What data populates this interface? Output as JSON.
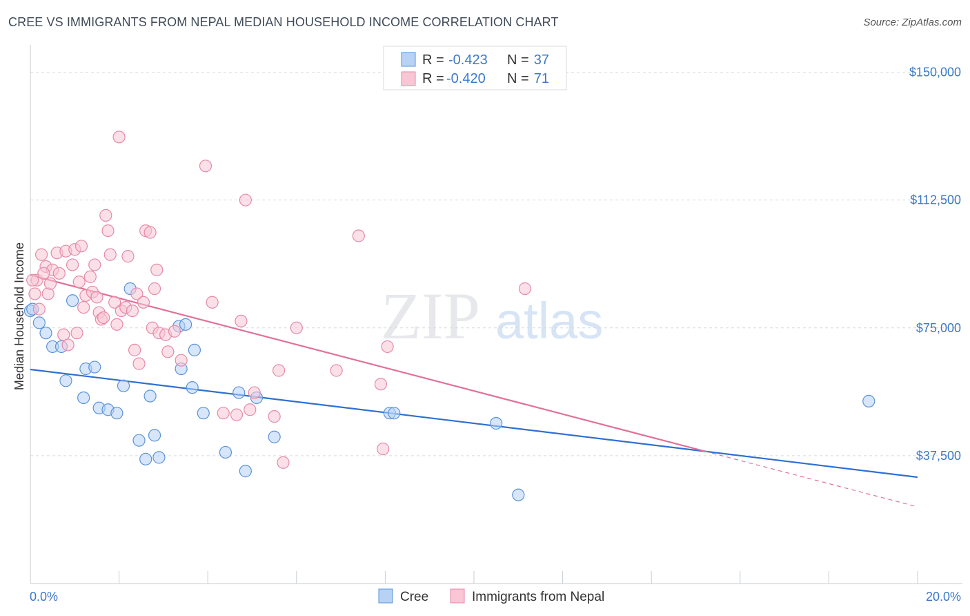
{
  "header": {
    "title": "CREE VS IMMIGRANTS FROM NEPAL MEDIAN HOUSEHOLD INCOME CORRELATION CHART",
    "source": "Source: ZipAtlas.com"
  },
  "watermark": {
    "zip": "ZIP",
    "atlas": "atlas"
  },
  "stats_legend": {
    "rows": [
      {
        "r_label": "R =",
        "r_value": "-0.423",
        "n_label": "N =",
        "n_value": "37"
      },
      {
        "r_label": "R =",
        "r_value": "-0.420",
        "n_label": "N =",
        "n_value": "71"
      }
    ]
  },
  "colors": {
    "cree_fill": "#b7d2f5",
    "cree_stroke": "#5b93d8",
    "cree_line": "#2f6fd0",
    "nepal_fill": "#f8c6d5",
    "nepal_stroke": "#e68aa8",
    "nepal_line": "#e0709a",
    "tick_text": "#3b78c9",
    "grid": "#d5d9de"
  },
  "chart_data": {
    "type": "scatter",
    "title": "CREE VS IMMIGRANTS FROM NEPAL MEDIAN HOUSEHOLD INCOME CORRELATION CHART",
    "xlabel": "",
    "ylabel": "Median Household Income",
    "xlim": [
      0,
      20
    ],
    "ylim": [
      0,
      157000
    ],
    "x_tick_labels": [
      "0.0%",
      "20.0%"
    ],
    "y_ticks": [
      37500,
      75000,
      112500,
      150000
    ],
    "y_tick_labels": [
      "$37,500",
      "$75,000",
      "$112,500",
      "$150,000"
    ],
    "grid": true,
    "legend_position": "bottom",
    "series": [
      {
        "name": "Cree",
        "r": -0.423,
        "n": 37,
        "trend": {
          "x": [
            0,
            20
          ],
          "y": [
            62800,
            31200
          ],
          "dashed_from_x": null
        },
        "points": [
          [
            0.0,
            80000
          ],
          [
            0.2,
            76500
          ],
          [
            0.35,
            73500
          ],
          [
            0.5,
            69500
          ],
          [
            0.7,
            69500
          ],
          [
            0.8,
            59500
          ],
          [
            0.95,
            83000
          ],
          [
            1.25,
            63000
          ],
          [
            1.55,
            51500
          ],
          [
            1.2,
            54500
          ],
          [
            1.45,
            63500
          ],
          [
            1.75,
            51000
          ],
          [
            1.95,
            50000
          ],
          [
            2.1,
            58000
          ],
          [
            2.25,
            86500
          ],
          [
            2.45,
            42000
          ],
          [
            2.6,
            36500
          ],
          [
            2.7,
            55000
          ],
          [
            2.8,
            43500
          ],
          [
            2.9,
            37000
          ],
          [
            3.35,
            75500
          ],
          [
            3.5,
            76000
          ],
          [
            3.4,
            63000
          ],
          [
            3.7,
            68500
          ],
          [
            3.65,
            57500
          ],
          [
            3.9,
            50000
          ],
          [
            4.4,
            38500
          ],
          [
            4.7,
            56000
          ],
          [
            4.85,
            33000
          ],
          [
            5.1,
            54500
          ],
          [
            5.5,
            43000
          ],
          [
            8.1,
            50000
          ],
          [
            8.2,
            50000
          ],
          [
            10.5,
            47000
          ],
          [
            11.0,
            26000
          ],
          [
            18.9,
            53500
          ],
          [
            0.05,
            80500
          ]
        ]
      },
      {
        "name": "Immigrants from Nepal",
        "r": -0.42,
        "n": 71,
        "trend": {
          "x": [
            0,
            20
          ],
          "y": [
            90500,
            22500
          ],
          "dashed_from_x": 15.2
        },
        "points": [
          [
            0.1,
            85000
          ],
          [
            0.15,
            89000
          ],
          [
            0.25,
            96500
          ],
          [
            0.35,
            93000
          ],
          [
            0.4,
            85000
          ],
          [
            0.5,
            92000
          ],
          [
            0.6,
            97000
          ],
          [
            0.65,
            91000
          ],
          [
            0.75,
            73000
          ],
          [
            0.8,
            97500
          ],
          [
            0.85,
            70000
          ],
          [
            0.95,
            93500
          ],
          [
            1.0,
            98000
          ],
          [
            1.05,
            73500
          ],
          [
            1.1,
            88500
          ],
          [
            1.15,
            99000
          ],
          [
            1.2,
            81000
          ],
          [
            1.25,
            84500
          ],
          [
            1.35,
            90000
          ],
          [
            1.4,
            85500
          ],
          [
            1.45,
            93500
          ],
          [
            1.5,
            84000
          ],
          [
            1.55,
            79500
          ],
          [
            1.6,
            77500
          ],
          [
            1.65,
            78000
          ],
          [
            1.7,
            108000
          ],
          [
            1.75,
            103500
          ],
          [
            1.8,
            96500
          ],
          [
            1.9,
            82500
          ],
          [
            1.95,
            76000
          ],
          [
            2.0,
            131000
          ],
          [
            2.05,
            80000
          ],
          [
            2.15,
            81000
          ],
          [
            2.2,
            96000
          ],
          [
            2.3,
            80000
          ],
          [
            2.35,
            68500
          ],
          [
            2.4,
            85000
          ],
          [
            2.45,
            64500
          ],
          [
            2.55,
            82500
          ],
          [
            2.6,
            103500
          ],
          [
            2.7,
            103000
          ],
          [
            2.75,
            75000
          ],
          [
            2.8,
            86500
          ],
          [
            2.85,
            92000
          ],
          [
            2.9,
            73500
          ],
          [
            3.05,
            73000
          ],
          [
            3.1,
            68000
          ],
          [
            3.25,
            74000
          ],
          [
            3.4,
            65500
          ],
          [
            3.95,
            122500
          ],
          [
            4.1,
            82500
          ],
          [
            4.35,
            50000
          ],
          [
            4.65,
            49500
          ],
          [
            4.75,
            77000
          ],
          [
            4.85,
            112500
          ],
          [
            4.95,
            51000
          ],
          [
            5.05,
            56000
          ],
          [
            5.5,
            49000
          ],
          [
            5.6,
            62500
          ],
          [
            5.7,
            35500
          ],
          [
            6.0,
            75000
          ],
          [
            6.9,
            62500
          ],
          [
            7.4,
            102000
          ],
          [
            7.9,
            58500
          ],
          [
            7.95,
            39500
          ],
          [
            8.05,
            69500
          ],
          [
            11.15,
            86500
          ],
          [
            0.05,
            89000
          ],
          [
            0.2,
            80500
          ],
          [
            0.3,
            91000
          ],
          [
            0.45,
            88000
          ]
        ]
      }
    ]
  }
}
